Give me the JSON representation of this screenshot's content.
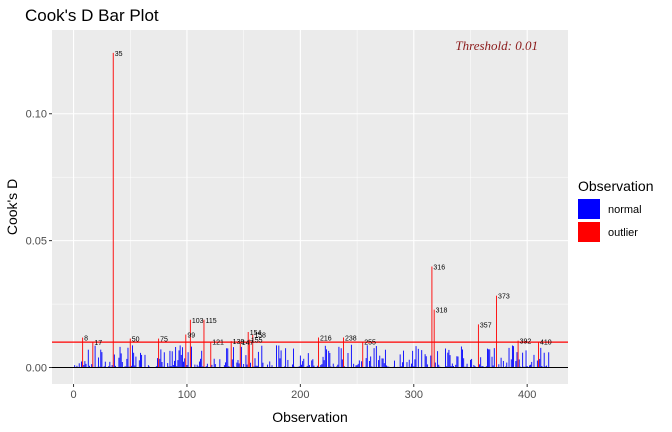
{
  "chart_data": {
    "type": "bar",
    "title": "Cook's D Bar Plot",
    "xlabel": "Observation",
    "ylabel": "Cook's D",
    "xlim": [
      -19,
      436
    ],
    "ylim": [
      -0.0065,
      0.133
    ],
    "xticks": [
      0,
      100,
      200,
      300,
      400
    ],
    "xtick_labels": [
      "0",
      "100",
      "200",
      "300",
      "400"
    ],
    "yticks": [
      0.0,
      0.05,
      0.1
    ],
    "ytick_labels": [
      "0.00",
      "0.05",
      "0.10"
    ],
    "threshold": 0.01,
    "threshold_label": "Threshold: 0.01",
    "grid": true,
    "legend": {
      "title": "Observation",
      "placement": "right",
      "entries": [
        {
          "label": "normal",
          "color": "#0000ff"
        },
        {
          "label": "outlier",
          "color": "#ff0000"
        }
      ]
    },
    "colors": {
      "normal": "#0000ff",
      "outlier": "#ff0000",
      "threshold": "#ff0000",
      "panel": "#ebebeb",
      "grid": "#ffffff"
    },
    "series": [
      {
        "name": "outlier",
        "points": [
          {
            "x": 8,
            "y": 0.0118,
            "label": "8"
          },
          {
            "x": 17,
            "y": 0.01,
            "label": "17"
          },
          {
            "x": 35,
            "y": 0.124,
            "label": "35"
          },
          {
            "x": 50,
            "y": 0.0114,
            "label": "50"
          },
          {
            "x": 75,
            "y": 0.0114,
            "label": "75"
          },
          {
            "x": 99,
            "y": 0.013,
            "label": "99"
          },
          {
            "x": 103,
            "y": 0.0188,
            "label": "103"
          },
          {
            "x": 115,
            "y": 0.0188,
            "label": "115"
          },
          {
            "x": 121,
            "y": 0.0102,
            "label": "121"
          },
          {
            "x": 139,
            "y": 0.0104,
            "label": "139"
          },
          {
            "x": 147,
            "y": 0.01,
            "label": "147"
          },
          {
            "x": 154,
            "y": 0.014,
            "label": "154"
          },
          {
            "x": 155,
            "y": 0.011,
            "label": "155"
          },
          {
            "x": 158,
            "y": 0.013,
            "label": "158"
          },
          {
            "x": 216,
            "y": 0.0118,
            "label": "216"
          },
          {
            "x": 238,
            "y": 0.0118,
            "label": "238"
          },
          {
            "x": 255,
            "y": 0.0102,
            "label": "255"
          },
          {
            "x": 316,
            "y": 0.0398,
            "label": "316"
          },
          {
            "x": 318,
            "y": 0.0228,
            "label": "318"
          },
          {
            "x": 357,
            "y": 0.017,
            "label": "357"
          },
          {
            "x": 373,
            "y": 0.0283,
            "label": "373"
          },
          {
            "x": 392,
            "y": 0.0106,
            "label": "392"
          },
          {
            "x": 410,
            "y": 0.0102,
            "label": "410"
          }
        ]
      },
      {
        "name": "normal",
        "x_range": [
          1,
          420
        ],
        "typical_range": [
          0.0,
          0.009
        ]
      }
    ]
  }
}
